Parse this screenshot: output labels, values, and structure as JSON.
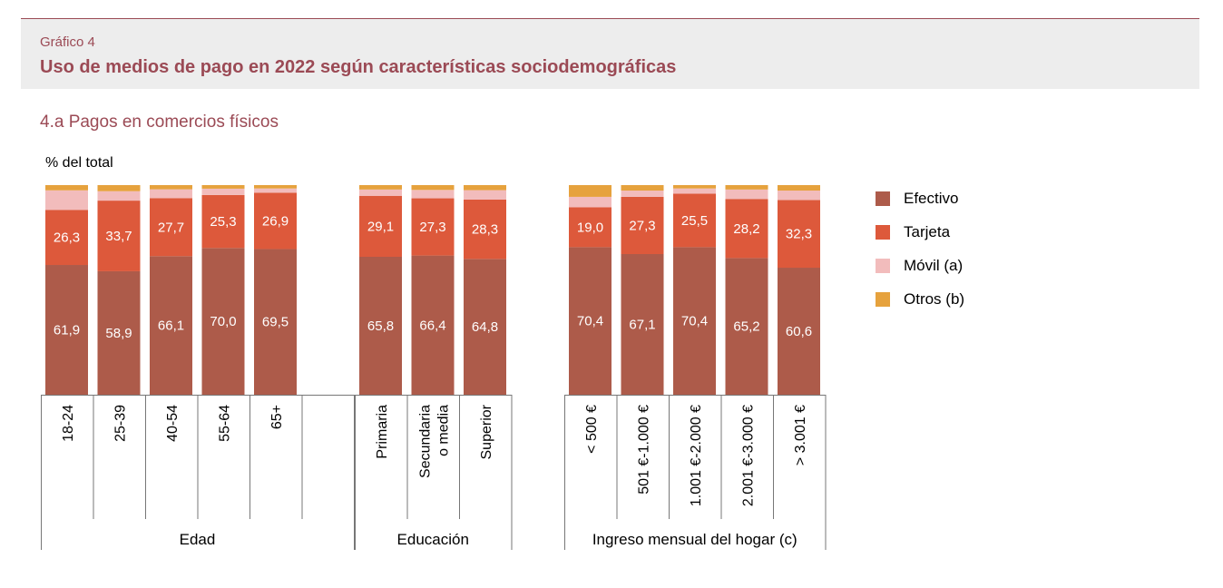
{
  "header": {
    "label": "Gráfico 4",
    "title": "Uso de medios de pago en 2022 según características sociodemográficas"
  },
  "subtitle": "4.a  Pagos en comercios físicos",
  "colors": {
    "efectivo": "#ad5b4a",
    "tarjeta": "#dd593b",
    "movil": "#f2bcbc",
    "otros": "#e6a23d",
    "accent": "#9b4a55"
  },
  "chart_data": {
    "type": "bar",
    "stacked": true,
    "ylabel": "% del total",
    "ylim": [
      0,
      100
    ],
    "grid": false,
    "legend_position": "right",
    "groups": [
      {
        "name": "Edad",
        "categories": [
          "18-24",
          "25-39",
          "40-54",
          "55-64",
          "65+"
        ]
      },
      {
        "name": "Educación",
        "categories": [
          "Primaria",
          "Secundaria o media",
          "Superior"
        ]
      },
      {
        "name": "Ingreso mensual del hogar (c)",
        "categories": [
          "< 500 €",
          "501 €-1.000 €",
          "1.001 €-2.000 €",
          "2.001 €-3.000 €",
          "> 3.001 €"
        ]
      }
    ],
    "categories": [
      "18-24",
      "25-39",
      "40-54",
      "55-64",
      "65+",
      "Primaria",
      "Secundaria o media",
      "Superior",
      "< 500 €",
      "501 €-1.000 €",
      "1.001 €-2.000 €",
      "2.001 €-3.000 €",
      "> 3.001 €"
    ],
    "series": [
      {
        "name": "Efectivo",
        "values": [
          61.9,
          58.9,
          66.1,
          70.0,
          69.5,
          65.8,
          66.4,
          64.8,
          70.4,
          67.1,
          70.4,
          65.2,
          60.6
        ],
        "labels": [
          "61,9",
          "58,9",
          "66,1",
          "70,0",
          "69,5",
          "65,8",
          "66,4",
          "64,8",
          "70,4",
          "67,1",
          "70,4",
          "65,2",
          "60,6"
        ]
      },
      {
        "name": "Tarjeta",
        "values": [
          26.3,
          33.7,
          27.7,
          25.3,
          26.9,
          29.1,
          27.3,
          28.3,
          19.0,
          27.3,
          25.5,
          28.2,
          32.3
        ],
        "labels": [
          "26,3",
          "33,7",
          "27,7",
          "25,3",
          "26,9",
          "29,1",
          "27,3",
          "28,3",
          "19,0",
          "27,3",
          "25,5",
          "28,2",
          "32,3"
        ]
      },
      {
        "name": "Móvil (a)",
        "values": [
          9.3,
          4.5,
          4.2,
          3.0,
          2.0,
          3.0,
          4.0,
          4.5,
          5.0,
          3.0,
          2.5,
          4.5,
          4.5
        ]
      },
      {
        "name": "Otros (b)",
        "values": [
          2.5,
          2.9,
          2.0,
          1.7,
          1.6,
          2.1,
          2.3,
          2.4,
          5.6,
          2.6,
          1.6,
          2.1,
          2.6
        ]
      }
    ]
  }
}
